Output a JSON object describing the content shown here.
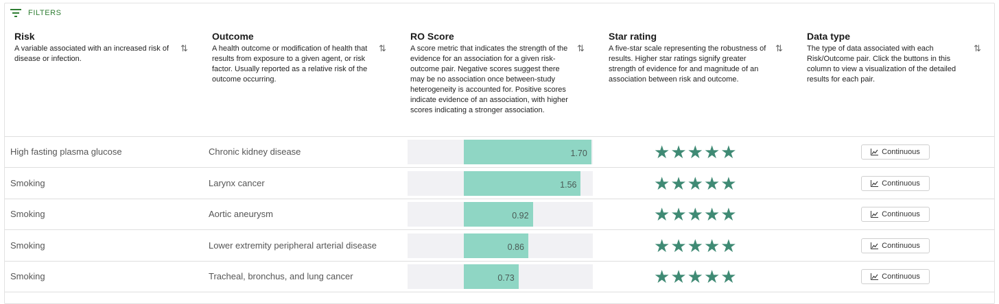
{
  "filters": {
    "label": "FILTERS",
    "icon": "filter-lines-icon"
  },
  "columns": [
    {
      "title": "Risk",
      "desc": "A variable associated with an increased risk of disease or infection.",
      "sort_icon": "sort-arrows-icon"
    },
    {
      "title": "Outcome",
      "desc": "A health outcome or modification of health that results from exposure to a given agent, or risk factor. Usually reported as a relative risk of the outcome occurring.",
      "sort_icon": "sort-arrows-icon"
    },
    {
      "title": "RO Score",
      "desc": "A score metric that indicates the strength of the evidence for an association for a given risk-outcome pair. Negative scores suggest there may be no association once between-study heterogeneity is accounted for. Positive scores indicate evidence of an association, with higher scores indicating a stronger association.",
      "sort_icon": "sort-arrows-icon"
    },
    {
      "title": "Star rating",
      "desc": "A five-star scale representing the robustness of results. Higher star ratings signify greater strength of evidence for and magnitude of an association between risk and outcome.",
      "sort_icon": "sort-arrows-icon"
    },
    {
      "title": "Data type",
      "desc": "The type of data associated with each Risk/Outcome pair. Click the buttons in this column to view a visualization of the detailed results for each pair.",
      "sort_icon": "sort-arrows-icon"
    }
  ],
  "rows": [
    {
      "risk": "High fasting plasma glucose",
      "outcome": "Chronic kidney disease",
      "score": 1.7,
      "score_label": "1.70",
      "stars": 5,
      "data_type": "Continuous"
    },
    {
      "risk": "Smoking",
      "outcome": "Larynx cancer",
      "score": 1.56,
      "score_label": "1.56",
      "stars": 5,
      "data_type": "Continuous"
    },
    {
      "risk": "Smoking",
      "outcome": "Aortic aneurysm",
      "score": 0.92,
      "score_label": "0.92",
      "stars": 5,
      "data_type": "Continuous"
    },
    {
      "risk": "Smoking",
      "outcome": "Lower extremity peripheral arterial disease",
      "score": 0.86,
      "score_label": "0.86",
      "stars": 5,
      "data_type": "Continuous"
    },
    {
      "risk": "Smoking",
      "outcome": "Tracheal, bronchus, and lung cancer",
      "score": 0.73,
      "score_label": "0.73",
      "stars": 5,
      "data_type": "Continuous"
    }
  ],
  "score_axis": {
    "min": -0.75,
    "max": 1.72
  },
  "colors": {
    "accent_green": "#2e7d32",
    "bar_fill": "#8fd6c4",
    "star": "#3f8a74",
    "bar_track": "#f1f1f4"
  }
}
